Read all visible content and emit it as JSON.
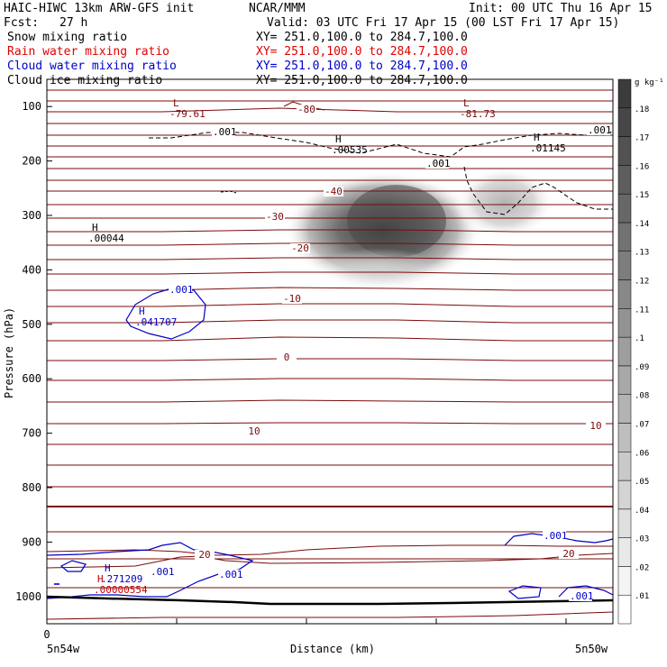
{
  "header": {
    "title": "HAIC-HIWC 13km ARW-GFS init",
    "org": "NCAR/MMM",
    "init": "Init: 00 UTC Thu 16 Apr 15",
    "fcst_label": "Fcst:",
    "fcst_value": "27 h",
    "valid": "Valid: 03 UTC Fri 17 Apr 15 (00 LST Fri 17 Apr 15)"
  },
  "fields": [
    {
      "name": "Snow mixing ratio",
      "xy": "XY= 251.0,100.0 to 284.7,100.0",
      "color": "#000000"
    },
    {
      "name": "Rain water mixing ratio",
      "xy": "XY= 251.0,100.0 to 284.7,100.0",
      "color": "#e00000"
    },
    {
      "name": "Cloud water mixing ratio",
      "xy": "XY= 251.0,100.0 to 284.7,100.0",
      "color": "#0000c8"
    },
    {
      "name": "Cloud ice mixing ratio",
      "xy": "XY= 251.0,100.0 to 284.7,100.0",
      "color": "#000000"
    }
  ],
  "colors": {
    "temperature": "#7a0a0a",
    "cloud_water": "#0000c8",
    "rain": "#c00000",
    "snow": "#000000"
  },
  "chart_data": {
    "type": "contour",
    "xlabel": "Distance (km)",
    "ylabel": "Pressure (hPa)",
    "x_ticks": [
      "0"
    ],
    "x_endpoints": [
      "5n54w",
      "5n50w"
    ],
    "y_ticks": [
      100,
      200,
      300,
      400,
      500,
      600,
      700,
      800,
      900,
      1000
    ],
    "ylim": [
      1050,
      50
    ],
    "colorbar": {
      "unit": "g kg⁻¹",
      "levels": [
        ".01",
        ".02",
        ".03",
        ".04",
        ".05",
        ".06",
        ".07",
        ".08",
        ".09",
        ".1",
        ".11",
        ".12",
        ".13",
        ".14",
        ".15",
        ".16",
        ".17",
        ".18"
      ]
    },
    "temperature_labels": [
      {
        "text": "-80",
        "p": 123
      },
      {
        "text": "-40",
        "p": 255
      },
      {
        "text": "-30",
        "p": 304
      },
      {
        "text": "-20",
        "p": 375
      },
      {
        "text": "-10",
        "p": 478
      },
      {
        "text": "0",
        "p": 560
      },
      {
        "text": "10",
        "p": 697
      },
      {
        "text": "10",
        "p": 686
      },
      {
        "text": "20",
        "p": 942
      },
      {
        "text": "20",
        "p": 942
      }
    ],
    "extrema": [
      {
        "kind": "L",
        "value": "-79.61",
        "p": 118,
        "color": "#7a0a0a"
      },
      {
        "kind": "L",
        "value": "-81.73",
        "p": 115,
        "color": "#7a0a0a"
      },
      {
        "kind": "H",
        "value": ".00535",
        "p": 180,
        "color": "#000000"
      },
      {
        "kind": "H",
        "value": ".01145",
        "p": 178,
        "color": "#000000"
      },
      {
        "kind": "H",
        "value": ".00044",
        "p": 338,
        "color": "#000000"
      },
      {
        "kind": "H",
        "value": ".041707",
        "p": 493,
        "color": "#0000c8"
      },
      {
        "kind": "H",
        "value": ".271209",
        "p": 975,
        "color": "#0000c8"
      },
      {
        "kind": "H",
        "value": ".00000554",
        "p": 988,
        "color": "#c00000"
      }
    ],
    "contour_labels": [
      {
        "text": ".001",
        "color": "#000000"
      },
      {
        "text": ".001",
        "color": "#000000"
      },
      {
        "text": ".001",
        "color": "#000000"
      },
      {
        "text": ".001",
        "color": "#0000c8"
      },
      {
        "text": ".001",
        "color": "#0000c8"
      },
      {
        "text": ".001",
        "color": "#0000c8"
      },
      {
        "text": ".001",
        "color": "#0000c8"
      },
      {
        "text": ".001",
        "color": "#0000c8"
      }
    ]
  }
}
